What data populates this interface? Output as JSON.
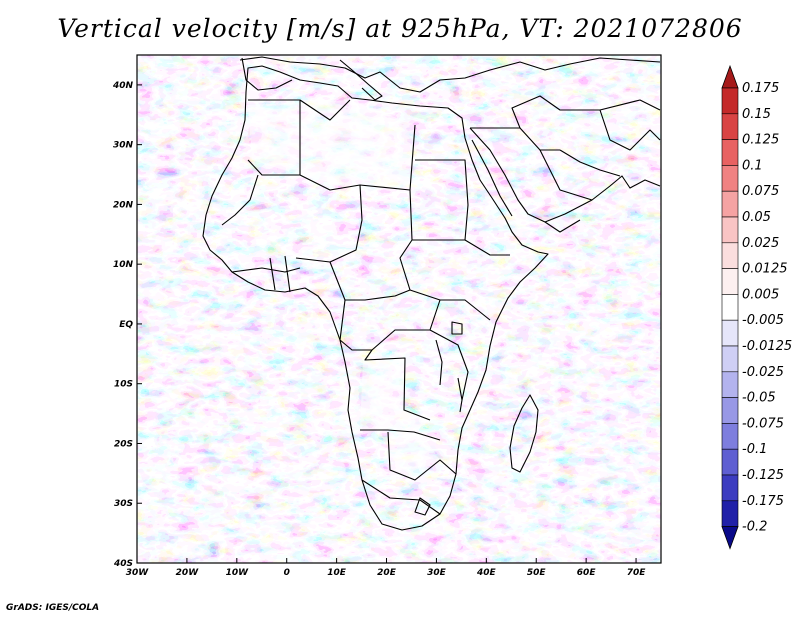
{
  "title": "Vertical velocity [m/s] at 925hPa, VT: 2021072806",
  "credit": "GrADS: IGES/COLA",
  "map": {
    "lon_range": [
      -30,
      75
    ],
    "lat_range": [
      -40,
      45
    ],
    "lat_ticks": [
      {
        "value": 40,
        "label": "40N"
      },
      {
        "value": 30,
        "label": "30N"
      },
      {
        "value": 20,
        "label": "20N"
      },
      {
        "value": 10,
        "label": "10N"
      },
      {
        "value": 0,
        "label": "EQ"
      },
      {
        "value": -10,
        "label": "10S"
      },
      {
        "value": -20,
        "label": "20S"
      },
      {
        "value": -30,
        "label": "30S"
      },
      {
        "value": -40,
        "label": "40S"
      }
    ],
    "lon_ticks": [
      {
        "value": -30,
        "label": "30W"
      },
      {
        "value": -20,
        "label": "20W"
      },
      {
        "value": -10,
        "label": "10W"
      },
      {
        "value": 0,
        "label": "0"
      },
      {
        "value": 10,
        "label": "10E"
      },
      {
        "value": 20,
        "label": "20E"
      },
      {
        "value": 30,
        "label": "30E"
      },
      {
        "value": 40,
        "label": "40E"
      },
      {
        "value": 50,
        "label": "50E"
      },
      {
        "value": 60,
        "label": "60E"
      },
      {
        "value": 70,
        "label": "70E"
      }
    ]
  },
  "colorbar": {
    "levels": [
      "0.175",
      "0.15",
      "0.125",
      "0.1",
      "0.075",
      "0.05",
      "0.025",
      "0.0125",
      "0.005",
      "-0.005",
      "-0.0125",
      "-0.025",
      "-0.05",
      "-0.075",
      "-0.1",
      "-0.125",
      "-0.175",
      "-0.2"
    ],
    "colors": [
      "#a51a1a",
      "#c42a2a",
      "#d94444",
      "#e86262",
      "#f08282",
      "#f5a3a3",
      "#f9c4c4",
      "#fbdede",
      "#fdf0f0",
      "#ffffff",
      "#e6e6fa",
      "#cfcff5",
      "#b3b3ee",
      "#9898e6",
      "#7e7ede",
      "#5f5fd2",
      "#3c3cc0",
      "#2020a8",
      "#0a0a8a"
    ]
  }
}
